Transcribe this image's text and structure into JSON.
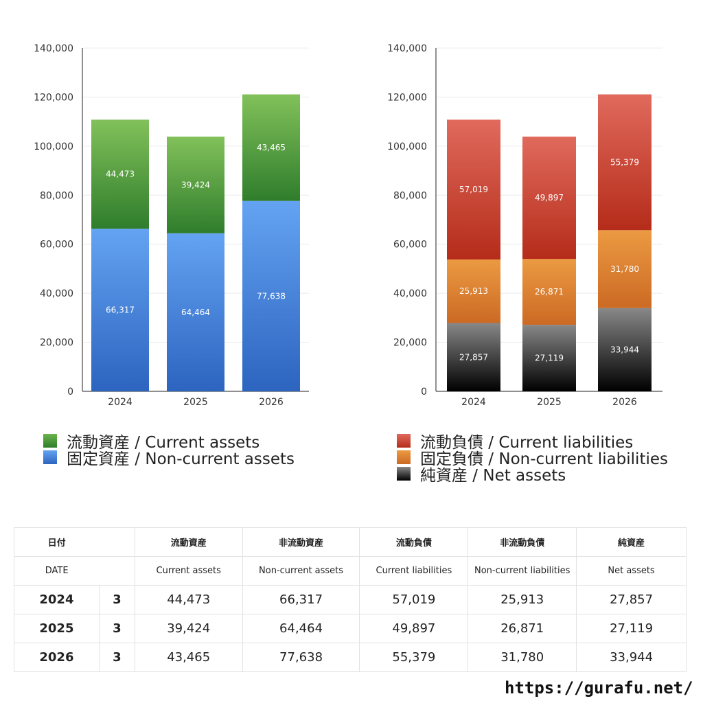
{
  "chart_data": [
    {
      "type": "bar",
      "stacked": true,
      "categories": [
        "2024",
        "2025",
        "2026"
      ],
      "ylim": [
        0,
        140000
      ],
      "yticks": [
        "0",
        "20,000",
        "40,000",
        "60,000",
        "80,000",
        "100,000",
        "120,000",
        "140,000"
      ],
      "series": [
        {
          "name": "固定資産 / Non-current assets",
          "values": [
            66317,
            64464,
            77638
          ],
          "labels": [
            "66,317",
            "64,464",
            "77,638"
          ],
          "color_top": "#64a3f2",
          "color_bottom": "#2c64bf"
        },
        {
          "name": "流動資産 / Current assets",
          "values": [
            44473,
            39424,
            43465
          ],
          "labels": [
            "44,473",
            "39,424",
            "43,465"
          ],
          "color_top": "#82c15a",
          "color_bottom": "#2f7d2c"
        }
      ],
      "grid": true
    },
    {
      "type": "bar",
      "stacked": true,
      "categories": [
        "2024",
        "2025",
        "2026"
      ],
      "ylim": [
        0,
        140000
      ],
      "yticks": [
        "0",
        "20,000",
        "40,000",
        "60,000",
        "80,000",
        "100,000",
        "120,000",
        "140,000"
      ],
      "series": [
        {
          "name": "純資産 / Net assets",
          "values": [
            27857,
            27119,
            33944
          ],
          "labels": [
            "27,857",
            "27,119",
            "33,944"
          ],
          "color_top": "#888888",
          "color_bottom": "#000000"
        },
        {
          "name": "固定負債 / Non-current liabilities",
          "values": [
            25913,
            26871,
            31780
          ],
          "labels": [
            "25,913",
            "26,871",
            "31,780"
          ],
          "color_top": "#eb9a42",
          "color_bottom": "#cc6a24"
        },
        {
          "name": "流動負債 / Current liabilities",
          "values": [
            57019,
            49897,
            55379
          ],
          "labels": [
            "57,019",
            "49,897",
            "55,379"
          ],
          "color_top": "#e06a5c",
          "color_bottom": "#b52c1a"
        }
      ],
      "grid": true
    }
  ],
  "legend_left": [
    {
      "label": "流動資産 / Current assets",
      "color": "#4c9e3a"
    },
    {
      "label": "固定資産 / Non-current assets",
      "color": "#4a86dc"
    }
  ],
  "legend_right": [
    {
      "label": "流動負債 / Current liabilities",
      "color": "#d34a3a"
    },
    {
      "label": "固定負債 / Non-current liabilities",
      "color": "#e08a36"
    },
    {
      "label": "純資産 / Net assets",
      "color": "#333333"
    }
  ],
  "table": {
    "header_jp": {
      "date": "日付",
      "c1": "流動資産",
      "c2": "非流動資産",
      "c3": "流動負債",
      "c4": "非流動負債",
      "c5": "純資産"
    },
    "header_en": {
      "date": "DATE",
      "c1": "Current assets",
      "c2": "Non-current assets",
      "c3": "Current liabilities",
      "c4": "Non-current liabilities",
      "c5": "Net assets"
    },
    "rows": [
      {
        "year": "2024",
        "month": "3",
        "c1": "44,473",
        "c2": "66,317",
        "c3": "57,019",
        "c4": "25,913",
        "c5": "27,857"
      },
      {
        "year": "2025",
        "month": "3",
        "c1": "39,424",
        "c2": "64,464",
        "c3": "49,897",
        "c4": "26,871",
        "c5": "27,119"
      },
      {
        "year": "2026",
        "month": "3",
        "c1": "43,465",
        "c2": "77,638",
        "c3": "55,379",
        "c4": "31,780",
        "c5": "33,944"
      }
    ]
  },
  "site_url": "https://gurafu.net/"
}
